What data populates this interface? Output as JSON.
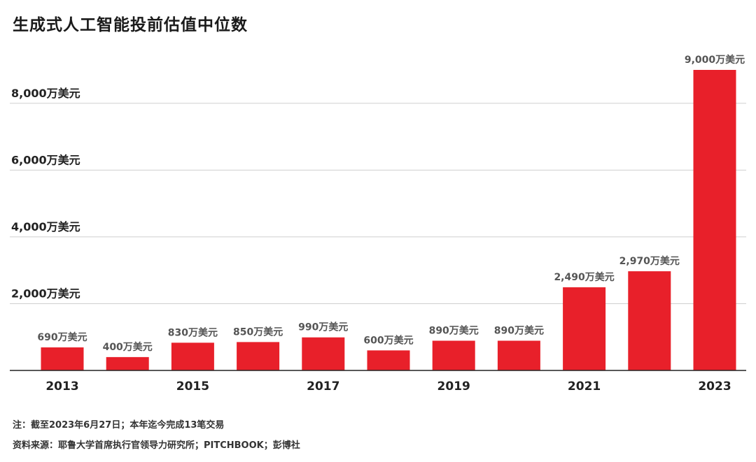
{
  "title": "生成式人工智能投前估值中位数",
  "chart_data": {
    "type": "bar",
    "title": "生成式人工智能投前估值中位数",
    "categories": [
      "2013",
      "2014",
      "2015",
      "2016",
      "2017",
      "2018",
      "2019",
      "2020",
      "2021",
      "2022",
      "2023"
    ],
    "values": [
      690,
      400,
      830,
      850,
      990,
      600,
      890,
      890,
      2490,
      2970,
      9000
    ],
    "value_labels": [
      "690万美元",
      "400万美元",
      "830万美元",
      "850万美元",
      "990万美元",
      "600万美元",
      "890万美元",
      "890万美元",
      "2,490万美元",
      "2,970万美元",
      "9,000万美元"
    ],
    "x_tick_labels": [
      "2013",
      "",
      "2015",
      "",
      "2017",
      "",
      "2019",
      "",
      "2021",
      "",
      "2023"
    ],
    "y_ticks": [
      2000,
      4000,
      6000,
      8000
    ],
    "y_tick_labels": [
      "2,000万美元",
      "4,000万美元",
      "6,000万美元",
      "8,000万美元"
    ],
    "ylim": [
      0,
      9000
    ],
    "unit": "万美元",
    "grid": true,
    "bar_color": "#e8202a"
  },
  "notes": {
    "note": "注：截至2023年6月27日；本年迄今完成13笔交易",
    "source": "资料来源：耶鲁大学首席执行官领导力研究所；PITCHBOOK；彭博社"
  }
}
